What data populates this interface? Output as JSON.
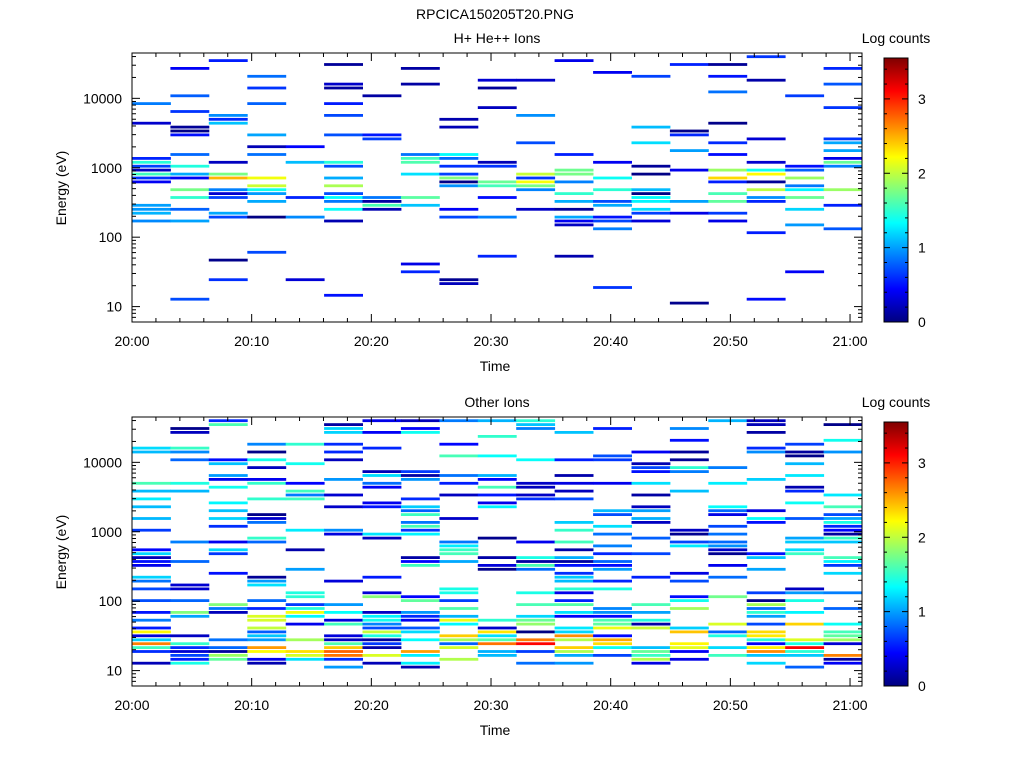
{
  "page": {
    "title": "RPCICA150205T20.PNG"
  },
  "colors": {
    "colormap": [
      "#00007f",
      "#0000ff",
      "#007fff",
      "#00ffff",
      "#7fff7f",
      "#ffff00",
      "#ff7f00",
      "#ff0000",
      "#7f0000"
    ],
    "frame": "#000000",
    "background": "#ffffff"
  },
  "chart_data": [
    {
      "type": "heatmap",
      "title": "H+ He++ Ions",
      "xlabel": "Time",
      "ylabel": "Energy (eV)",
      "x_ticks": [
        "20:00",
        "20:10",
        "20:20",
        "20:30",
        "20:40",
        "20:50",
        "21:00"
      ],
      "x_range_minutes": [
        0,
        61
      ],
      "y_scale": "log",
      "y_ticks": [
        "10",
        "100",
        "1000",
        "10000"
      ],
      "ylim": [
        6,
        45000
      ],
      "colorbar": {
        "label": "Log counts",
        "ticks": [
          "0",
          "1",
          "2",
          "3"
        ],
        "range": [
          0,
          3.55
        ]
      },
      "seed": 17,
      "profile": [
        [
          -1.0,
          0.05
        ],
        [
          -0.45,
          0.35
        ],
        [
          -0.15,
          0.55
        ],
        [
          0.12,
          0.3
        ],
        [
          0.35,
          0.25
        ],
        [
          0.9,
          0.1
        ]
      ]
    },
    {
      "type": "heatmap",
      "title": "Other Ions",
      "xlabel": "Time",
      "ylabel": "Energy (eV)",
      "x_ticks": [
        "20:00",
        "20:10",
        "20:20",
        "20:30",
        "20:40",
        "20:50",
        "21:00"
      ],
      "x_range_minutes": [
        0,
        61
      ],
      "y_scale": "log",
      "y_ticks": [
        "10",
        "100",
        "1000",
        "10000"
      ],
      "ylim": [
        6,
        45000
      ],
      "colorbar": {
        "label": "Log counts",
        "ticks": [
          "0",
          "1",
          "2",
          "3"
        ],
        "range": [
          0,
          3.55
        ]
      },
      "seed": 53,
      "profile": [
        [
          -1.0,
          0.0
        ],
        [
          -0.28,
          0.15
        ],
        [
          0.0,
          0.8
        ],
        [
          0.35,
          0.55
        ],
        [
          0.9,
          0.3
        ]
      ]
    }
  ]
}
